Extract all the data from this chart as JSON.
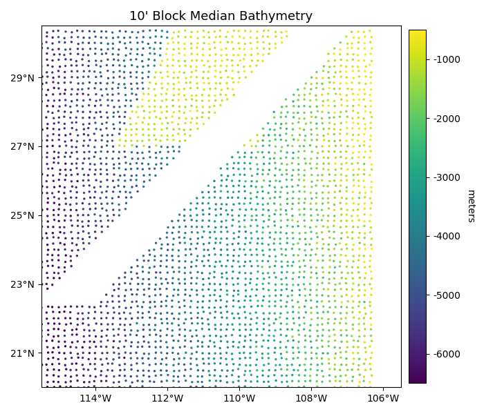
{
  "title": "10' Block Median Bathymetry",
  "lon_min": -115.5,
  "lon_max": -105.5,
  "lat_min": 20.0,
  "lat_max": 30.5,
  "xticks": [
    -114,
    -112,
    -110,
    -108,
    -106
  ],
  "xtick_labels": [
    "114°W",
    "112°W",
    "110°W",
    "108°W",
    "106°W"
  ],
  "yticks": [
    21,
    23,
    25,
    27,
    29
  ],
  "ytick_labels": [
    "21°N",
    "23°N",
    "25°N",
    "27°N",
    "29°N"
  ],
  "cmap": "viridis",
  "vmin": -6500,
  "vmax": -500,
  "colorbar_ticks": [
    -6000,
    -5000,
    -4000,
    -3000,
    -2000,
    -1000
  ],
  "colorbar_label": "meters",
  "dot_size": 6,
  "background_color": "#ffffff",
  "title_fontsize": 13
}
